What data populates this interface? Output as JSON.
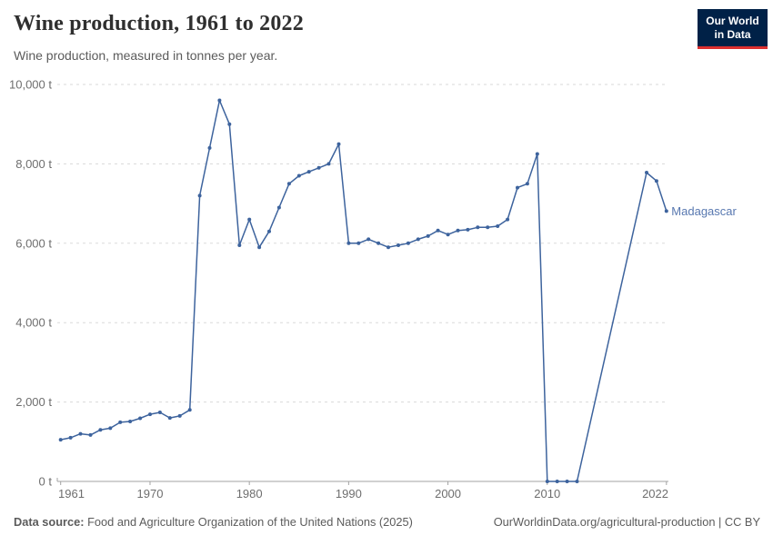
{
  "header": {
    "title": "Wine production, 1961 to 2022",
    "subtitle": "Wine production, measured in tonnes per year.",
    "logo": {
      "line1": "Our World",
      "line2": "in Data"
    }
  },
  "chart_data": {
    "type": "line",
    "title": "Wine production, 1961 to 2022",
    "ylabel": "",
    "xlabel": "",
    "unit": "t",
    "ylim": [
      0,
      10000
    ],
    "yticks": [
      0,
      2000,
      4000,
      6000,
      8000,
      10000
    ],
    "ytick_suffix": " t",
    "xticks": [
      1961,
      1970,
      1980,
      1990,
      2000,
      2010,
      2022
    ],
    "grid": "horizontal-dashed",
    "legend_position": "end-of-line-label",
    "missing_data_note": "no data 2014-2019; line connects 2013 to 2020 directly",
    "x": [
      1961,
      1962,
      1963,
      1964,
      1965,
      1966,
      1967,
      1968,
      1969,
      1970,
      1971,
      1972,
      1973,
      1974,
      1975,
      1976,
      1977,
      1978,
      1979,
      1980,
      1981,
      1982,
      1983,
      1984,
      1985,
      1986,
      1987,
      1988,
      1989,
      1990,
      1991,
      1992,
      1993,
      1994,
      1995,
      1996,
      1997,
      1998,
      1999,
      2000,
      2001,
      2002,
      2003,
      2004,
      2005,
      2006,
      2007,
      2008,
      2009,
      2010,
      2011,
      2012,
      2013,
      2014,
      2015,
      2016,
      2017,
      2018,
      2019,
      2020,
      2021,
      2022
    ],
    "series": [
      {
        "name": "Madagascar",
        "color": "#3d639d",
        "label_color": "#5878b0",
        "values": [
          1050,
          1100,
          1200,
          1170,
          1300,
          1340,
          1490,
          1510,
          1590,
          1690,
          1740,
          1600,
          1650,
          1800,
          7200,
          8400,
          9600,
          9000,
          5950,
          6600,
          5900,
          6300,
          6900,
          7500,
          7700,
          7800,
          7900,
          8000,
          8500,
          6000,
          6000,
          6100,
          6000,
          5900,
          5950,
          6000,
          6100,
          6180,
          6320,
          6220,
          6320,
          6340,
          6400,
          6400,
          6430,
          6600,
          7400,
          7500,
          8250,
          0,
          0,
          0,
          0,
          null,
          null,
          null,
          null,
          null,
          null,
          7780,
          7570,
          6810
        ]
      }
    ]
  },
  "colors": {
    "background": "#ffffff",
    "gridline": "#dadada",
    "axis": "#a3a3a3",
    "tick_label": "#6e6e6e",
    "line": "#3d639d",
    "entity_label": "#5878b0",
    "logo_bg": "#002147",
    "logo_stripe": "#dc2f2f"
  },
  "footer": {
    "source_label": "Data source:",
    "source_text": "Food and Agriculture Organization of the United Nations (2025)",
    "credit": "OurWorldinData.org/agricultural-production | CC BY"
  }
}
